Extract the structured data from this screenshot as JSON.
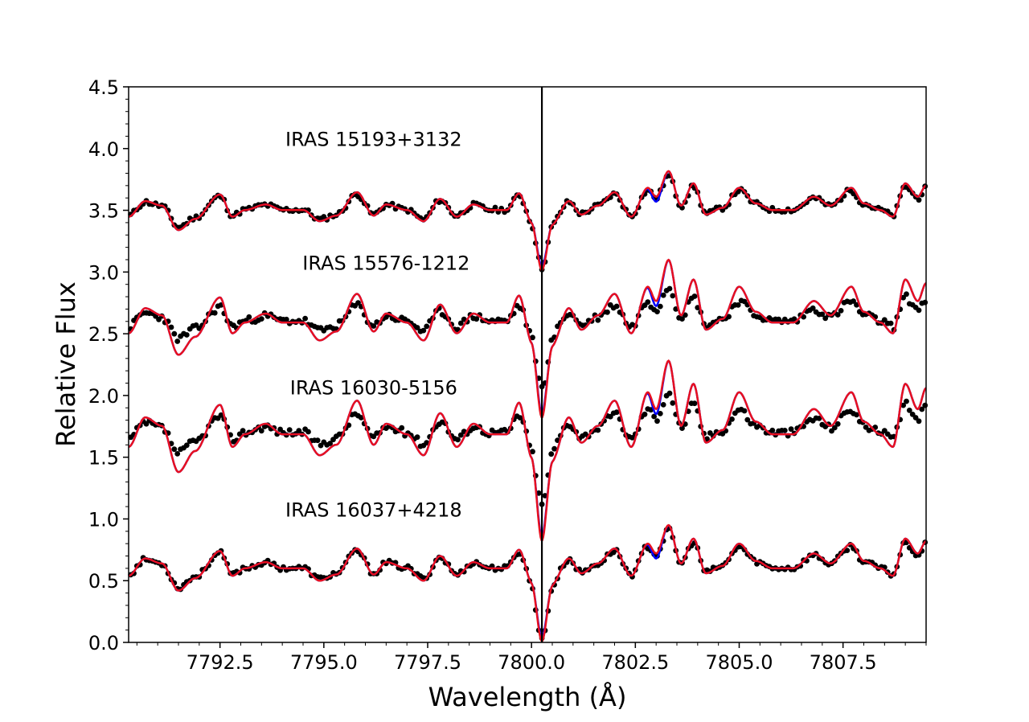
{
  "chart_data": {
    "type": "line",
    "xlabel": "Wavelength (Å)",
    "ylabel": "Relative Flux",
    "xlim": [
      7790.3,
      7809.5
    ],
    "ylim": [
      0.0,
      4.5
    ],
    "xticks": [
      "7792.5",
      "7795.0",
      "7797.5",
      "7800.0",
      "7802.5",
      "7805.0",
      "7807.5"
    ],
    "yticks": [
      "0.0",
      "0.5",
      "1.0",
      "1.5",
      "2.0",
      "2.5",
      "3.0",
      "3.5",
      "4.0",
      "4.5"
    ],
    "grid": false,
    "reference_line_x": 7800.25,
    "colors": {
      "observed": "#000000",
      "model_blue": "#0000ff",
      "model_red": "#e8101f",
      "reference_line": "#000000"
    },
    "spectra": [
      {
        "label": "IRAS 15193+3132",
        "offset": 3.0,
        "label_wavelength": 7796.2,
        "label_flux": 4.02,
        "line_depth": 0.28,
        "amp_scale": 0.9,
        "obs_noise": 0.02,
        "seed": 11
      },
      {
        "label": "IRAS 15576-1212",
        "offset": 2.1,
        "label_wavelength": 7796.5,
        "label_flux": 3.02,
        "line_depth": 0.42,
        "amp_scale": 1.45,
        "obs_noise": 0.03,
        "seed": 23
      },
      {
        "label": "IRAS 16030-5156",
        "offset": 1.2,
        "label_wavelength": 7796.2,
        "label_flux": 2.01,
        "line_depth": 0.4,
        "amp_scale": 1.7,
        "obs_noise": 0.03,
        "seed": 37
      },
      {
        "label": "IRAS 16037+4218",
        "offset": 0.1,
        "label_wavelength": 7796.2,
        "label_flux": 1.02,
        "line_depth": 0.42,
        "amp_scale": 1.0,
        "obs_noise": 0.02,
        "seed": 53
      }
    ],
    "profile": [
      [
        7790.3,
        0.44
      ],
      [
        7790.7,
        0.58
      ],
      [
        7791.1,
        0.54
      ],
      [
        7791.5,
        0.32
      ],
      [
        7791.9,
        0.42
      ],
      [
        7792.5,
        0.64
      ],
      [
        7792.8,
        0.44
      ],
      [
        7793.1,
        0.5
      ],
      [
        7793.6,
        0.55
      ],
      [
        7794.0,
        0.5
      ],
      [
        7794.5,
        0.5
      ],
      [
        7794.9,
        0.4
      ],
      [
        7795.3,
        0.45
      ],
      [
        7795.8,
        0.66
      ],
      [
        7796.2,
        0.45
      ],
      [
        7796.5,
        0.55
      ],
      [
        7797.0,
        0.5
      ],
      [
        7797.4,
        0.4
      ],
      [
        7797.8,
        0.6
      ],
      [
        7798.2,
        0.44
      ],
      [
        7798.6,
        0.55
      ],
      [
        7799.0,
        0.5
      ],
      [
        7799.4,
        0.5
      ],
      [
        7799.7,
        0.65
      ],
      [
        7800.0,
        0.4
      ],
      [
        7800.25,
        0.1
      ],
      [
        7800.5,
        0.38
      ],
      [
        7800.9,
        0.58
      ],
      [
        7801.2,
        0.46
      ],
      [
        7801.6,
        0.54
      ],
      [
        7802.0,
        0.66
      ],
      [
        7802.4,
        0.44
      ],
      [
        7802.8,
        0.7
      ],
      [
        7803.0,
        0.62
      ],
      [
        7803.3,
        0.85
      ],
      [
        7803.6,
        0.54
      ],
      [
        7803.9,
        0.74
      ],
      [
        7804.2,
        0.46
      ],
      [
        7804.6,
        0.52
      ],
      [
        7805.0,
        0.7
      ],
      [
        7805.4,
        0.56
      ],
      [
        7805.8,
        0.5
      ],
      [
        7806.3,
        0.5
      ],
      [
        7806.8,
        0.62
      ],
      [
        7807.2,
        0.54
      ],
      [
        7807.7,
        0.7
      ],
      [
        7808.0,
        0.56
      ],
      [
        7808.4,
        0.5
      ],
      [
        7808.7,
        0.44
      ],
      [
        7809.0,
        0.74
      ],
      [
        7809.3,
        0.62
      ],
      [
        7809.5,
        0.72
      ]
    ]
  }
}
